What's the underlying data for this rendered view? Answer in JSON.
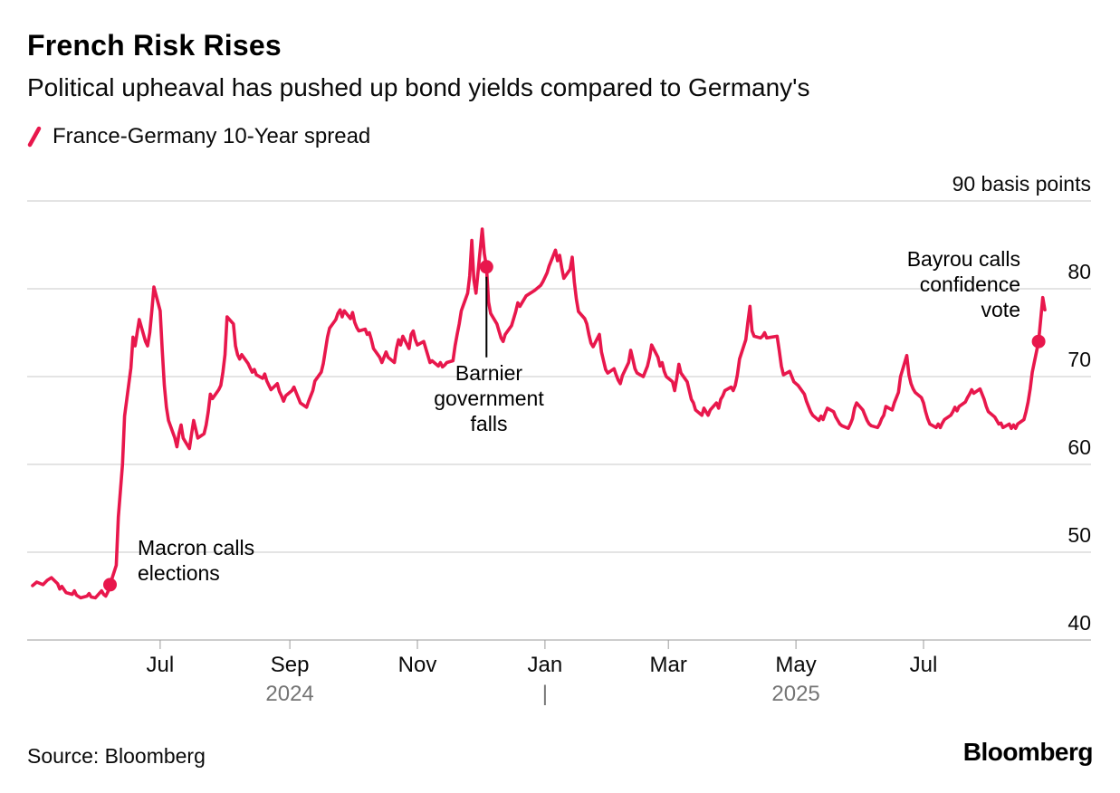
{
  "page": {
    "title": "French Risk Rises",
    "subtitle": "Political upheaval has pushed up bond yields compared to Germany's",
    "source": "Source: Bloomberg",
    "brand": "Bloomberg"
  },
  "legend": {
    "label": "France-Germany 10-Year spread"
  },
  "chart_data": {
    "type": "line",
    "title": "French Risk Rises",
    "subtitle": "Political upheaval has pushed up bond yields compared to Germany's",
    "series_name": "France-Germany 10-Year spread",
    "unit": "basis points",
    "color": "#e8174c",
    "grid": true,
    "x_range": [
      "2024-05-01",
      "2025-08-28"
    ],
    "y_range": [
      40,
      90
    ],
    "y_ticks": [
      {
        "value": 40,
        "label": "40"
      },
      {
        "value": 50,
        "label": "50"
      },
      {
        "value": 60,
        "label": "60"
      },
      {
        "value": 70,
        "label": "70"
      },
      {
        "value": 80,
        "label": "80"
      },
      {
        "value": 90,
        "label": "90 basis points"
      }
    ],
    "x_ticks": [
      {
        "date": "2024-07-01",
        "label": "Jul"
      },
      {
        "date": "2024-09-01",
        "label": "Sep"
      },
      {
        "date": "2024-11-01",
        "label": "Nov"
      },
      {
        "date": "2025-01-01",
        "label": "Jan"
      },
      {
        "date": "2025-03-01",
        "label": "Mar"
      },
      {
        "date": "2025-05-01",
        "label": "May"
      },
      {
        "date": "2025-07-01",
        "label": "Jul"
      }
    ],
    "year_labels": [
      {
        "date": "2024-09-01",
        "label": "2024"
      },
      {
        "date": "2025-05-01",
        "label": "2025"
      }
    ],
    "year_divider": {
      "date": "2025-01-01",
      "label": "|"
    },
    "markers": [
      {
        "name": "macron",
        "date": "2024-06-07",
        "value": 46.3,
        "label": "Macron calls elections",
        "connector": false
      },
      {
        "name": "barnier",
        "date": "2024-12-04",
        "value": 82.5,
        "label": "Barnier government falls",
        "connector": true
      },
      {
        "name": "bayrou",
        "date": "2025-08-25",
        "value": 74,
        "label": "Bayrou calls confidence vote",
        "connector": false
      }
    ],
    "points": [
      [
        "2024-05-01",
        46.2
      ],
      [
        "2024-05-03",
        46.6
      ],
      [
        "2024-05-06",
        46.3
      ],
      [
        "2024-05-08",
        46.8
      ],
      [
        "2024-05-10",
        47.1
      ],
      [
        "2024-05-13",
        46.4
      ],
      [
        "2024-05-14",
        45.8
      ],
      [
        "2024-05-15",
        46.1
      ],
      [
        "2024-05-17",
        45.4
      ],
      [
        "2024-05-20",
        45.2
      ],
      [
        "2024-05-21",
        45.6
      ],
      [
        "2024-05-22",
        45.1
      ],
      [
        "2024-05-24",
        44.8
      ],
      [
        "2024-05-27",
        45.0
      ],
      [
        "2024-05-28",
        45.3
      ],
      [
        "2024-05-29",
        44.9
      ],
      [
        "2024-05-31",
        44.8
      ],
      [
        "2024-06-03",
        45.6
      ],
      [
        "2024-06-04",
        45.2
      ],
      [
        "2024-06-05",
        45.0
      ],
      [
        "2024-06-06",
        45.5
      ],
      [
        "2024-06-07",
        46.3
      ],
      [
        "2024-06-10",
        48.5
      ],
      [
        "2024-06-11",
        54.0
      ],
      [
        "2024-06-12",
        57.0
      ],
      [
        "2024-06-13",
        60.0
      ],
      [
        "2024-06-14",
        65.5
      ],
      [
        "2024-06-17",
        71.0
      ],
      [
        "2024-06-18",
        74.5
      ],
      [
        "2024-06-19",
        73.5
      ],
      [
        "2024-06-20",
        75.0
      ],
      [
        "2024-06-21",
        76.5
      ],
      [
        "2024-06-24",
        74.0
      ],
      [
        "2024-06-25",
        73.5
      ],
      [
        "2024-06-26",
        75.0
      ],
      [
        "2024-06-27",
        77.5
      ],
      [
        "2024-06-28",
        80.2
      ],
      [
        "2024-07-01",
        77.5
      ],
      [
        "2024-07-02",
        73.0
      ],
      [
        "2024-07-03",
        69.0
      ],
      [
        "2024-07-04",
        66.5
      ],
      [
        "2024-07-05",
        65.0
      ],
      [
        "2024-07-08",
        63.0
      ],
      [
        "2024-07-09",
        62.0
      ],
      [
        "2024-07-10",
        63.5
      ],
      [
        "2024-07-11",
        64.5
      ],
      [
        "2024-07-12",
        63.0
      ],
      [
        "2024-07-15",
        61.8
      ],
      [
        "2024-07-16",
        63.5
      ],
      [
        "2024-07-17",
        65.0
      ],
      [
        "2024-07-18",
        64.0
      ],
      [
        "2024-07-19",
        63.0
      ],
      [
        "2024-07-22",
        63.5
      ],
      [
        "2024-07-23",
        64.5
      ],
      [
        "2024-07-24",
        66.0
      ],
      [
        "2024-07-25",
        68.0
      ],
      [
        "2024-07-26",
        67.5
      ],
      [
        "2024-07-29",
        68.5
      ],
      [
        "2024-07-30",
        69.0
      ],
      [
        "2024-07-31",
        70.5
      ],
      [
        "2024-08-01",
        72.5
      ],
      [
        "2024-08-02",
        76.8
      ],
      [
        "2024-08-05",
        76.0
      ],
      [
        "2024-08-06",
        73.5
      ],
      [
        "2024-08-07",
        72.5
      ],
      [
        "2024-08-08",
        72.0
      ],
      [
        "2024-08-09",
        72.5
      ],
      [
        "2024-08-12",
        71.5
      ],
      [
        "2024-08-13",
        71.0
      ],
      [
        "2024-08-14",
        70.5
      ],
      [
        "2024-08-15",
        70.8
      ],
      [
        "2024-08-16",
        70.2
      ],
      [
        "2024-08-19",
        69.8
      ],
      [
        "2024-08-20",
        70.3
      ],
      [
        "2024-08-21",
        69.5
      ],
      [
        "2024-08-22",
        69.0
      ],
      [
        "2024-08-23",
        68.5
      ],
      [
        "2024-08-26",
        69.2
      ],
      [
        "2024-08-27",
        68.3
      ],
      [
        "2024-08-28",
        67.8
      ],
      [
        "2024-08-29",
        67.2
      ],
      [
        "2024-08-30",
        67.8
      ],
      [
        "2024-09-02",
        68.4
      ],
      [
        "2024-09-03",
        68.8
      ],
      [
        "2024-09-04",
        68.2
      ],
      [
        "2024-09-05",
        67.6
      ],
      [
        "2024-09-06",
        67.0
      ],
      [
        "2024-09-09",
        66.5
      ],
      [
        "2024-09-10",
        67.2
      ],
      [
        "2024-09-11",
        67.8
      ],
      [
        "2024-09-12",
        68.4
      ],
      [
        "2024-09-13",
        69.5
      ],
      [
        "2024-09-16",
        70.5
      ],
      [
        "2024-09-17",
        71.5
      ],
      [
        "2024-09-18",
        73.0
      ],
      [
        "2024-09-19",
        74.5
      ],
      [
        "2024-09-20",
        75.5
      ],
      [
        "2024-09-23",
        76.5
      ],
      [
        "2024-09-24",
        77.2
      ],
      [
        "2024-09-25",
        77.6
      ],
      [
        "2024-09-26",
        76.8
      ],
      [
        "2024-09-27",
        77.5
      ],
      [
        "2024-09-30",
        76.6
      ],
      [
        "2024-10-01",
        77.3
      ],
      [
        "2024-10-02",
        76.2
      ],
      [
        "2024-10-03",
        75.6
      ],
      [
        "2024-10-04",
        75.2
      ],
      [
        "2024-10-07",
        75.4
      ],
      [
        "2024-10-08",
        74.8
      ],
      [
        "2024-10-09",
        75.0
      ],
      [
        "2024-10-10",
        74.2
      ],
      [
        "2024-10-11",
        73.2
      ],
      [
        "2024-10-14",
        72.2
      ],
      [
        "2024-10-15",
        71.6
      ],
      [
        "2024-10-16",
        72.2
      ],
      [
        "2024-10-17",
        72.8
      ],
      [
        "2024-10-18",
        72.2
      ],
      [
        "2024-10-21",
        71.6
      ],
      [
        "2024-10-22",
        73.2
      ],
      [
        "2024-10-23",
        74.2
      ],
      [
        "2024-10-24",
        73.6
      ],
      [
        "2024-10-25",
        74.6
      ],
      [
        "2024-10-28",
        73.2
      ],
      [
        "2024-10-29",
        74.8
      ],
      [
        "2024-10-30",
        75.2
      ],
      [
        "2024-10-31",
        74.2
      ],
      [
        "2024-11-01",
        73.6
      ],
      [
        "2024-11-04",
        74.0
      ],
      [
        "2024-11-05",
        73.2
      ],
      [
        "2024-11-06",
        72.4
      ],
      [
        "2024-11-07",
        71.6
      ],
      [
        "2024-11-08",
        71.8
      ],
      [
        "2024-11-11",
        71.2
      ],
      [
        "2024-11-12",
        71.6
      ],
      [
        "2024-11-13",
        71.1
      ],
      [
        "2024-11-14",
        71.3
      ],
      [
        "2024-11-15",
        71.6
      ],
      [
        "2024-11-18",
        71.8
      ],
      [
        "2024-11-19",
        73.5
      ],
      [
        "2024-11-20",
        74.8
      ],
      [
        "2024-11-21",
        76.0
      ],
      [
        "2024-11-22",
        77.5
      ],
      [
        "2024-11-25",
        79.5
      ],
      [
        "2024-11-26",
        81.5
      ],
      [
        "2024-11-27",
        85.5
      ],
      [
        "2024-11-28",
        81.0
      ],
      [
        "2024-11-29",
        79.5
      ],
      [
        "2024-12-02",
        86.8
      ],
      [
        "2024-12-03",
        84.0
      ],
      [
        "2024-12-04",
        82.5
      ],
      [
        "2024-12-05",
        78.5
      ],
      [
        "2024-12-06",
        77.2
      ],
      [
        "2024-12-09",
        76.0
      ],
      [
        "2024-12-10",
        75.2
      ],
      [
        "2024-12-11",
        74.4
      ],
      [
        "2024-12-12",
        74.0
      ],
      [
        "2024-12-13",
        74.8
      ],
      [
        "2024-12-16",
        75.8
      ],
      [
        "2024-12-17",
        76.6
      ],
      [
        "2024-12-18",
        77.4
      ],
      [
        "2024-12-19",
        78.4
      ],
      [
        "2024-12-20",
        78.0
      ],
      [
        "2024-12-23",
        79.2
      ],
      [
        "2024-12-27",
        79.8
      ],
      [
        "2024-12-30",
        80.4
      ],
      [
        "2024-12-31",
        80.8
      ],
      [
        "2025-01-02",
        81.8
      ],
      [
        "2025-01-03",
        82.6
      ],
      [
        "2025-01-06",
        84.4
      ],
      [
        "2025-01-07",
        83.2
      ],
      [
        "2025-01-08",
        83.8
      ],
      [
        "2025-01-09",
        82.4
      ],
      [
        "2025-01-10",
        81.2
      ],
      [
        "2025-01-13",
        82.2
      ],
      [
        "2025-01-14",
        83.6
      ],
      [
        "2025-01-15",
        80.8
      ],
      [
        "2025-01-16",
        78.8
      ],
      [
        "2025-01-17",
        77.4
      ],
      [
        "2025-01-20",
        76.6
      ],
      [
        "2025-01-21",
        76.0
      ],
      [
        "2025-01-22",
        74.8
      ],
      [
        "2025-01-23",
        73.8
      ],
      [
        "2025-01-24",
        73.4
      ],
      [
        "2025-01-27",
        74.8
      ],
      [
        "2025-01-28",
        72.8
      ],
      [
        "2025-01-29",
        71.8
      ],
      [
        "2025-01-30",
        70.8
      ],
      [
        "2025-01-31",
        70.4
      ],
      [
        "2025-02-03",
        70.9
      ],
      [
        "2025-02-04",
        70.2
      ],
      [
        "2025-02-05",
        69.6
      ],
      [
        "2025-02-06",
        69.2
      ],
      [
        "2025-02-07",
        70.1
      ],
      [
        "2025-02-10",
        71.6
      ],
      [
        "2025-02-11",
        73.0
      ],
      [
        "2025-02-12",
        72.0
      ],
      [
        "2025-02-13",
        70.9
      ],
      [
        "2025-02-14",
        70.4
      ],
      [
        "2025-02-17",
        70.0
      ],
      [
        "2025-02-18",
        70.6
      ],
      [
        "2025-02-19",
        71.2
      ],
      [
        "2025-02-20",
        72.2
      ],
      [
        "2025-02-21",
        73.6
      ],
      [
        "2025-02-24",
        72.2
      ],
      [
        "2025-02-25",
        71.2
      ],
      [
        "2025-02-26",
        71.6
      ],
      [
        "2025-02-27",
        70.6
      ],
      [
        "2025-02-28",
        70.0
      ],
      [
        "2025-03-03",
        69.4
      ],
      [
        "2025-03-04",
        68.4
      ],
      [
        "2025-03-05",
        69.8
      ],
      [
        "2025-03-06",
        71.4
      ],
      [
        "2025-03-07",
        70.4
      ],
      [
        "2025-03-10",
        69.4
      ],
      [
        "2025-03-11",
        68.4
      ],
      [
        "2025-03-12",
        67.4
      ],
      [
        "2025-03-13",
        67.0
      ],
      [
        "2025-03-14",
        66.2
      ],
      [
        "2025-03-17",
        65.6
      ],
      [
        "2025-03-18",
        66.4
      ],
      [
        "2025-03-19",
        66.0
      ],
      [
        "2025-03-20",
        65.6
      ],
      [
        "2025-03-21",
        66.2
      ],
      [
        "2025-03-24",
        67.0
      ],
      [
        "2025-03-25",
        66.4
      ],
      [
        "2025-03-26",
        67.4
      ],
      [
        "2025-03-27",
        67.8
      ],
      [
        "2025-03-28",
        68.4
      ],
      [
        "2025-03-31",
        68.8
      ],
      [
        "2025-04-01",
        68.4
      ],
      [
        "2025-04-02",
        69.0
      ],
      [
        "2025-04-03",
        70.2
      ],
      [
        "2025-04-04",
        72.0
      ],
      [
        "2025-04-07",
        74.2
      ],
      [
        "2025-04-08",
        76.2
      ],
      [
        "2025-04-09",
        78.0
      ],
      [
        "2025-04-10",
        75.2
      ],
      [
        "2025-04-11",
        74.6
      ],
      [
        "2025-04-14",
        74.4
      ],
      [
        "2025-04-15",
        74.6
      ],
      [
        "2025-04-16",
        75.0
      ],
      [
        "2025-04-17",
        74.4
      ],
      [
        "2025-04-22",
        74.6
      ],
      [
        "2025-04-23",
        73.0
      ],
      [
        "2025-04-24",
        71.2
      ],
      [
        "2025-04-25",
        70.2
      ],
      [
        "2025-04-28",
        70.6
      ],
      [
        "2025-04-29",
        70.0
      ],
      [
        "2025-04-30",
        69.4
      ],
      [
        "2025-05-02",
        69.0
      ],
      [
        "2025-05-05",
        68.0
      ],
      [
        "2025-05-06",
        67.2
      ],
      [
        "2025-05-07",
        66.6
      ],
      [
        "2025-05-08",
        66.0
      ],
      [
        "2025-05-09",
        65.6
      ],
      [
        "2025-05-12",
        65.0
      ],
      [
        "2025-05-13",
        65.5
      ],
      [
        "2025-05-14",
        65.1
      ],
      [
        "2025-05-15",
        65.8
      ],
      [
        "2025-05-16",
        66.4
      ],
      [
        "2025-05-19",
        66.0
      ],
      [
        "2025-05-20",
        65.4
      ],
      [
        "2025-05-21",
        65.0
      ],
      [
        "2025-05-22",
        64.6
      ],
      [
        "2025-05-23",
        64.4
      ],
      [
        "2025-05-26",
        64.1
      ],
      [
        "2025-05-27",
        64.6
      ],
      [
        "2025-05-28",
        65.2
      ],
      [
        "2025-05-29",
        66.4
      ],
      [
        "2025-05-30",
        67.0
      ],
      [
        "2025-06-02",
        66.2
      ],
      [
        "2025-06-03",
        65.6
      ],
      [
        "2025-06-04",
        65.0
      ],
      [
        "2025-06-05",
        64.6
      ],
      [
        "2025-06-06",
        64.4
      ],
      [
        "2025-06-09",
        64.2
      ],
      [
        "2025-06-10",
        64.6
      ],
      [
        "2025-06-11",
        65.2
      ],
      [
        "2025-06-12",
        65.6
      ],
      [
        "2025-06-13",
        66.6
      ],
      [
        "2025-06-16",
        66.2
      ],
      [
        "2025-06-17",
        67.0
      ],
      [
        "2025-06-18",
        67.6
      ],
      [
        "2025-06-19",
        68.2
      ],
      [
        "2025-06-20",
        70.0
      ],
      [
        "2025-06-23",
        72.4
      ],
      [
        "2025-06-24",
        70.2
      ],
      [
        "2025-06-25",
        69.2
      ],
      [
        "2025-06-26",
        68.6
      ],
      [
        "2025-06-27",
        68.2
      ],
      [
        "2025-06-30",
        67.6
      ],
      [
        "2025-07-01",
        67.0
      ],
      [
        "2025-07-02",
        66.0
      ],
      [
        "2025-07-03",
        65.2
      ],
      [
        "2025-07-04",
        64.6
      ],
      [
        "2025-07-07",
        64.2
      ],
      [
        "2025-07-08",
        64.6
      ],
      [
        "2025-07-09",
        64.2
      ],
      [
        "2025-07-10",
        64.7
      ],
      [
        "2025-07-11",
        65.1
      ],
      [
        "2025-07-14",
        65.6
      ],
      [
        "2025-07-15",
        66.0
      ],
      [
        "2025-07-16",
        66.5
      ],
      [
        "2025-07-17",
        66.1
      ],
      [
        "2025-07-18",
        66.6
      ],
      [
        "2025-07-21",
        67.1
      ],
      [
        "2025-07-22",
        67.6
      ],
      [
        "2025-07-23",
        68.0
      ],
      [
        "2025-07-24",
        68.5
      ],
      [
        "2025-07-25",
        68.1
      ],
      [
        "2025-07-28",
        68.6
      ],
      [
        "2025-07-29",
        68.0
      ],
      [
        "2025-07-30",
        67.4
      ],
      [
        "2025-07-31",
        66.6
      ],
      [
        "2025-08-01",
        66.0
      ],
      [
        "2025-08-04",
        65.4
      ],
      [
        "2025-08-05",
        65.0
      ],
      [
        "2025-08-06",
        64.6
      ],
      [
        "2025-08-07",
        64.7
      ],
      [
        "2025-08-08",
        64.2
      ],
      [
        "2025-08-11",
        64.6
      ],
      [
        "2025-08-12",
        64.1
      ],
      [
        "2025-08-13",
        64.5
      ],
      [
        "2025-08-14",
        64.1
      ],
      [
        "2025-08-15",
        64.6
      ],
      [
        "2025-08-18",
        65.1
      ],
      [
        "2025-08-19",
        66.0
      ],
      [
        "2025-08-20",
        67.1
      ],
      [
        "2025-08-21",
        68.6
      ],
      [
        "2025-08-22",
        70.5
      ],
      [
        "2025-08-25",
        74.0
      ],
      [
        "2025-08-26",
        76.5
      ],
      [
        "2025-08-27",
        79.0
      ],
      [
        "2025-08-28",
        77.6
      ]
    ]
  }
}
